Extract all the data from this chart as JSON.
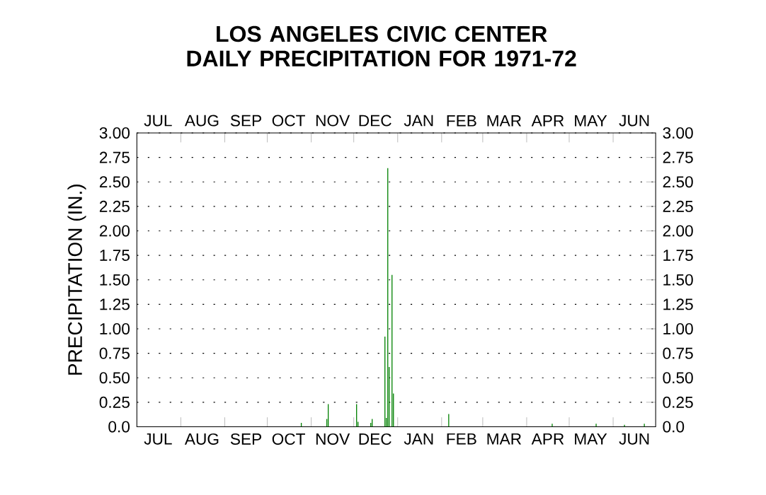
{
  "chart_data": {
    "type": "bar",
    "title": "LOS ANGELES CIVIC CENTER DAILY PRECIPITATION FOR 1971-72",
    "ylabel": "PRECIPITATION (IN.)",
    "x": [
      "1971-10-25",
      "1971-11-12",
      "1971-11-13",
      "1971-12-03",
      "1971-12-04",
      "1971-12-13",
      "1971-12-14",
      "1971-12-23",
      "1971-12-24",
      "1971-12-25",
      "1971-12-26",
      "1971-12-28",
      "1971-12-29",
      "1972-02-06",
      "1972-04-19",
      "1972-05-20",
      "1972-06-09",
      "1972-06-23"
    ],
    "values": [
      0.04,
      0.08,
      0.23,
      0.23,
      0.05,
      0.04,
      0.08,
      0.92,
      0.09,
      2.64,
      0.61,
      1.55,
      0.34,
      0.13,
      0.03,
      0.03,
      0.02,
      0.03
    ],
    "color": "#008000",
    "xlim": [
      "1971-07-01",
      "1972-07-01"
    ],
    "xticks": [
      {
        "value": "1971-08-01",
        "label": null
      },
      {
        "value": "1971-09-01",
        "label": null
      },
      {
        "value": "1971-10-01",
        "label": null
      },
      {
        "value": "1971-11-01",
        "label": null
      },
      {
        "value": "1971-12-01",
        "label": null
      },
      {
        "value": "1972-01-01",
        "label": null
      },
      {
        "value": "1972-02-01",
        "label": null
      },
      {
        "value": "1972-03-01",
        "label": null
      },
      {
        "value": "1972-04-01",
        "label": null
      },
      {
        "value": "1972-05-01",
        "label": null
      },
      {
        "value": "1972-06-01",
        "label": null
      },
      {
        "value": "1971-07-16",
        "label": "JUL"
      },
      {
        "value": "1971-08-16",
        "label": "AUG"
      },
      {
        "value": "1971-09-16",
        "label": "SEP"
      },
      {
        "value": "1971-10-16",
        "label": "OCT"
      },
      {
        "value": "1971-11-16",
        "label": "NOV"
      },
      {
        "value": "1971-12-16",
        "label": "DEC"
      },
      {
        "value": "1972-01-16",
        "label": "JAN"
      },
      {
        "value": "1972-02-15",
        "label": "FEB"
      },
      {
        "value": "1972-03-16",
        "label": "MAR"
      },
      {
        "value": "1972-04-16",
        "label": "APR"
      },
      {
        "value": "1972-05-16",
        "label": "MAY"
      },
      {
        "value": "1972-06-16",
        "label": "JUN"
      }
    ],
    "x2lim": [
      "1971-07-01",
      "1972-07-01"
    ],
    "x2ticks": [
      {
        "value": "1971-07-16",
        "label": "JUL"
      },
      {
        "value": "1971-08-16",
        "label": "AUG"
      },
      {
        "value": "1971-09-16",
        "label": "SEP"
      },
      {
        "value": "1971-10-16",
        "label": "OCT"
      },
      {
        "value": "1971-11-16",
        "label": "NOV"
      },
      {
        "value": "1971-12-16",
        "label": "DEC"
      },
      {
        "value": "1972-01-16",
        "label": "JAN"
      },
      {
        "value": "1972-02-15",
        "label": "FEB"
      },
      {
        "value": "1972-03-16",
        "label": "MAR"
      },
      {
        "value": "1972-04-16",
        "label": "APR"
      },
      {
        "value": "1972-05-16",
        "label": "MAY"
      },
      {
        "value": "1972-06-16",
        "label": "JUN"
      }
    ],
    "ylim": [
      0,
      3
    ],
    "yticks": [
      {
        "value": 0,
        "label": "0.0"
      },
      0.25,
      {
        "value": 0.5,
        "label": "0.50"
      },
      0.75,
      {
        "value": 1,
        "label": "1.00"
      },
      1.25,
      {
        "value": 1.5,
        "label": "1.50"
      },
      1.75,
      {
        "value": 2,
        "label": "2.00"
      },
      2.25,
      {
        "value": 2.5,
        "label": "2.50"
      },
      2.75,
      {
        "value": 3,
        "label": "3.00"
      }
    ],
    "y2lim": [
      0,
      3
    ],
    "y2ticks": [
      {
        "value": 0,
        "label": "0.0"
      },
      0.25,
      {
        "value": 0.5,
        "label": "0.50"
      },
      0.75,
      {
        "value": 1,
        "label": "1.00"
      },
      1.25,
      {
        "value": 1.5,
        "label": "1.50"
      },
      1.75,
      {
        "value": 2,
        "label": "2.00"
      },
      2.25,
      {
        "value": 2.5,
        "label": "2.50"
      },
      2.75,
      {
        "value": 3,
        "label": "3.00"
      }
    ],
    "grid": "y"
  }
}
